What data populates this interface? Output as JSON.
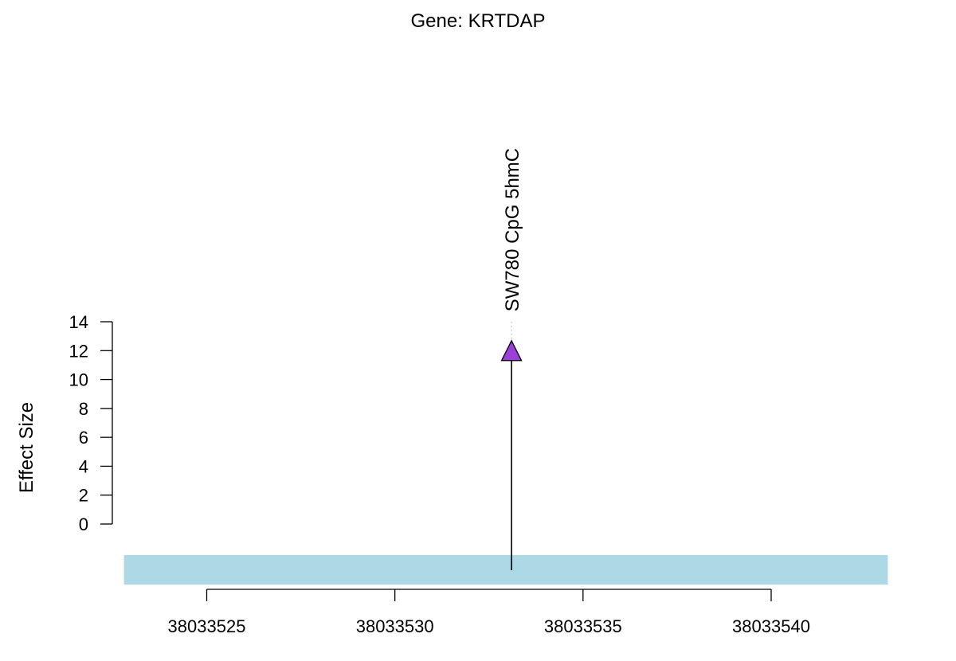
{
  "chart_data": {
    "type": "scatter",
    "title": "Gene: KRTDAP",
    "ylabel": "Effect Size",
    "xlabel": "",
    "ylim": [
      0,
      14
    ],
    "y_ticks": [
      0,
      2,
      4,
      6,
      8,
      10,
      12,
      14
    ],
    "xlim": [
      38033522.8,
      38033543.1
    ],
    "x_ticks": [
      38033525,
      38033530,
      38033535,
      38033540
    ],
    "x_tick_labels": [
      "38033525",
      "38033530",
      "38033535",
      "38033540"
    ],
    "gene_region": {
      "start": 38033522.8,
      "end": 38033543.1,
      "color": "#add8e6"
    },
    "points": [
      {
        "x": 38033533.1,
        "y": 12,
        "label": "SW780 CpG 5hmC",
        "marker": "triangle",
        "color": "#9b3fd8"
      }
    ],
    "grid": false,
    "legend": "none"
  }
}
